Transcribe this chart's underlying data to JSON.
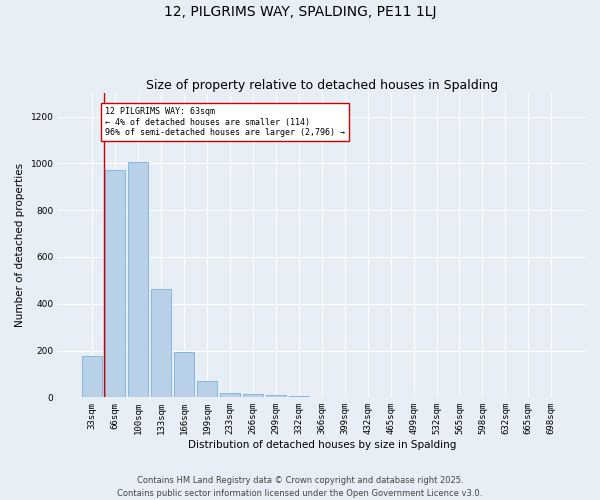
{
  "title": "12, PILGRIMS WAY, SPALDING, PE11 1LJ",
  "subtitle": "Size of property relative to detached houses in Spalding",
  "xlabel": "Distribution of detached houses by size in Spalding",
  "ylabel": "Number of detached properties",
  "categories": [
    "33sqm",
    "66sqm",
    "100sqm",
    "133sqm",
    "166sqm",
    "199sqm",
    "233sqm",
    "266sqm",
    "299sqm",
    "332sqm",
    "366sqm",
    "399sqm",
    "432sqm",
    "465sqm",
    "499sqm",
    "532sqm",
    "565sqm",
    "598sqm",
    "632sqm",
    "665sqm",
    "698sqm"
  ],
  "values": [
    175,
    970,
    1005,
    465,
    193,
    68,
    20,
    13,
    10,
    5,
    3,
    0,
    0,
    0,
    0,
    0,
    0,
    0,
    0,
    0,
    0
  ],
  "bar_color": "#b8d0e8",
  "bar_edgecolor": "#6aaad4",
  "vline_color": "#cc0000",
  "annotation_text": "12 PILGRIMS WAY: 63sqm\n← 4% of detached houses are smaller (114)\n96% of semi-detached houses are larger (2,796) →",
  "annotation_box_color": "#ffffff",
  "annotation_box_edgecolor": "#cc0000",
  "ylim": [
    0,
    1300
  ],
  "yticks": [
    0,
    200,
    400,
    600,
    800,
    1000,
    1200
  ],
  "footer": "Contains HM Land Registry data © Crown copyright and database right 2025.\nContains public sector information licensed under the Open Government Licence v3.0.",
  "bg_color": "#e8eef5",
  "plot_bg_color": "#e8eef5",
  "grid_color": "#ffffff",
  "title_fontsize": 10,
  "subtitle_fontsize": 9,
  "axis_label_fontsize": 7.5,
  "tick_fontsize": 6.5,
  "footer_fontsize": 6
}
